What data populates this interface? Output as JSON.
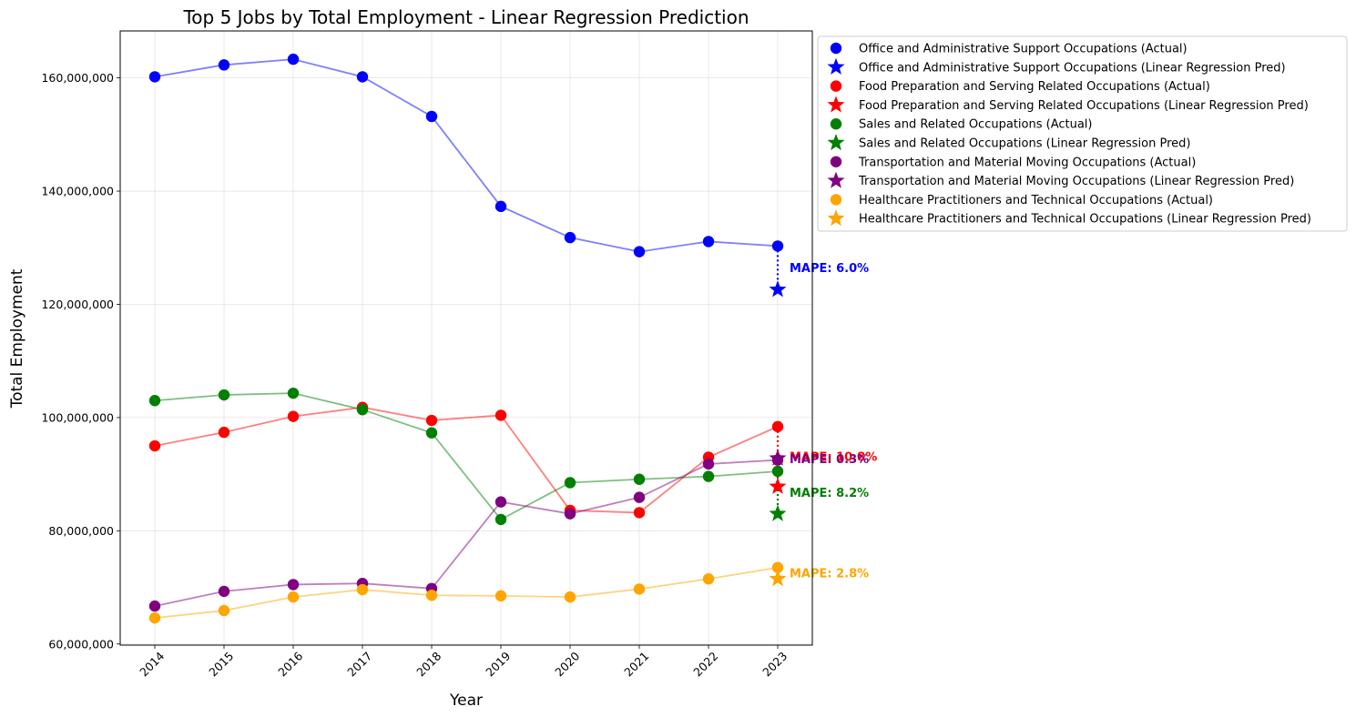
{
  "chart_data": {
    "type": "line",
    "title": "Top 5 Jobs by Total Employment - Linear Regression Prediction",
    "xlabel": "Year",
    "ylabel": "Total Employment",
    "x": [
      2014,
      2015,
      2016,
      2017,
      2018,
      2019,
      2020,
      2021,
      2022,
      2023
    ],
    "x_ticks": [
      "2014",
      "2015",
      "2016",
      "2017",
      "2018",
      "2019",
      "2020",
      "2021",
      "2022",
      "2023"
    ],
    "xlim": [
      2013.5,
      2023.5
    ],
    "ylim": [
      59800000,
      168300000
    ],
    "y_ticks": [
      60000000,
      80000000,
      100000000,
      120000000,
      140000000,
      160000000
    ],
    "y_tick_labels": [
      "60,000,000",
      "80,000,000",
      "100,000,000",
      "120,000,000",
      "140,000,000",
      "160,000,000"
    ],
    "grid": true,
    "legend_position": "outside-upper-right",
    "series": [
      {
        "name": "Office and Administrative Support Occupations",
        "legend_actual": "Office and Administrative Support Occupations (Actual)",
        "legend_pred": "Office and Administrative Support Occupations (Linear Regression Pred)",
        "color": "#0000ff",
        "values": [
          160200000,
          162300000,
          163300000,
          160200000,
          153200000,
          137300000,
          131800000,
          129300000,
          131100000,
          130300000
        ],
        "prediction": 122600000,
        "mape_label": "MAPE: 6.0%"
      },
      {
        "name": "Food Preparation and Serving Related Occupations",
        "legend_actual": "Food Preparation and Serving Related Occupations (Actual)",
        "legend_pred": "Food Preparation and Serving Related Occupations (Linear Regression Pred)",
        "color": "#ff0000",
        "values": [
          95000000,
          97400000,
          100200000,
          101800000,
          99500000,
          100400000,
          83600000,
          83200000,
          93000000,
          98400000
        ],
        "prediction": 87800000,
        "mape_label": "MAPE: 10.8%"
      },
      {
        "name": "Sales and Related Occupations",
        "legend_actual": "Sales and Related Occupations (Actual)",
        "legend_pred": "Sales and Related Occupations (Linear Regression Pred)",
        "color": "#008000",
        "values": [
          103000000,
          104000000,
          104300000,
          101400000,
          97300000,
          82000000,
          88500000,
          89100000,
          89600000,
          90500000
        ],
        "prediction": 83000000,
        "mape_label": "MAPE: 8.2%"
      },
      {
        "name": "Transportation and Material Moving Occupations",
        "legend_actual": "Transportation and Material Moving Occupations (Actual)",
        "legend_pred": "Transportation and Material Moving Occupations (Linear Regression Pred)",
        "color": "#800080",
        "values": [
          66700000,
          69300000,
          70500000,
          70700000,
          69800000,
          85100000,
          83000000,
          85900000,
          91800000,
          92500000
        ],
        "prediction": 92800000,
        "mape_label": "MAPE: 0.3%"
      },
      {
        "name": "Healthcare Practitioners and Technical Occupations",
        "legend_actual": "Healthcare Practitioners and Technical Occupations (Actual)",
        "legend_pred": "Healthcare Practitioners and Technical Occupations (Linear Regression Pred)",
        "color": "#ffa500",
        "values": [
          64600000,
          65900000,
          68300000,
          69600000,
          68600000,
          68500000,
          68300000,
          69700000,
          71500000,
          73500000
        ],
        "prediction": 71500000,
        "mape_label": "MAPE: 2.8%"
      }
    ]
  }
}
